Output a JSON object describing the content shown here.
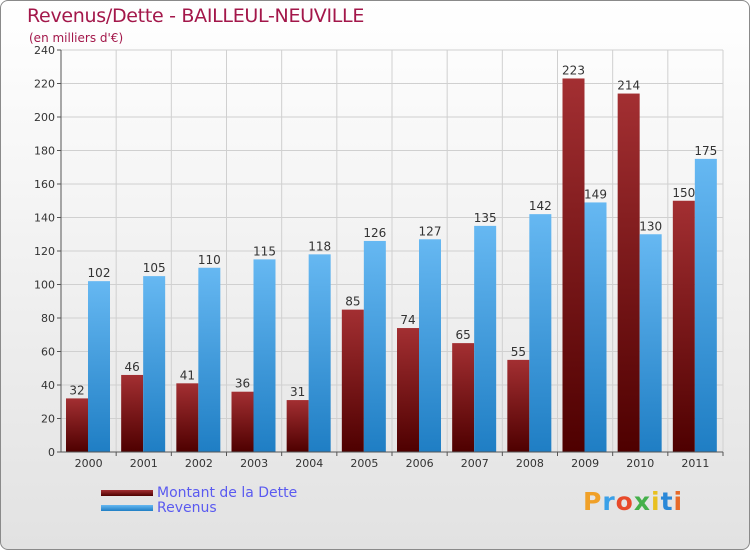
{
  "title": "Revenus/Dette - BAILLEUL-NEUVILLE",
  "subtitle": "(en milliers d'€)",
  "colors": {
    "dette_top": "#a32f32",
    "dette_bottom": "#4e0000",
    "revenus_top": "#66b8f2",
    "revenus_bottom": "#1f7ec4",
    "title": "#a3174a",
    "legend_text": "#5a5af0"
  },
  "legend": {
    "dette_label": "Montant de la Dette",
    "revenus_label": "Revenus"
  },
  "logo": {
    "text": "Proxiti"
  },
  "chart_data": {
    "type": "bar",
    "title": "Revenus/Dette - BAILLEUL-NEUVILLE",
    "subtitle": "(en milliers d'€)",
    "xlabel": "",
    "ylabel": "",
    "ylim": [
      0,
      240
    ],
    "yticks": [
      0,
      20,
      40,
      60,
      80,
      100,
      120,
      140,
      160,
      180,
      200,
      220,
      240
    ],
    "grid": true,
    "legend_position": "bottom-left",
    "categories": [
      "2000",
      "2001",
      "2002",
      "2003",
      "2004",
      "2005",
      "2006",
      "2007",
      "2008",
      "2009",
      "2010",
      "2011"
    ],
    "series": [
      {
        "name": "Montant de la Dette",
        "values": [
          32,
          46,
          41,
          36,
          31,
          85,
          74,
          65,
          55,
          223,
          214,
          150
        ]
      },
      {
        "name": "Revenus",
        "values": [
          102,
          105,
          110,
          115,
          118,
          126,
          127,
          135,
          142,
          149,
          130,
          175
        ]
      }
    ]
  }
}
